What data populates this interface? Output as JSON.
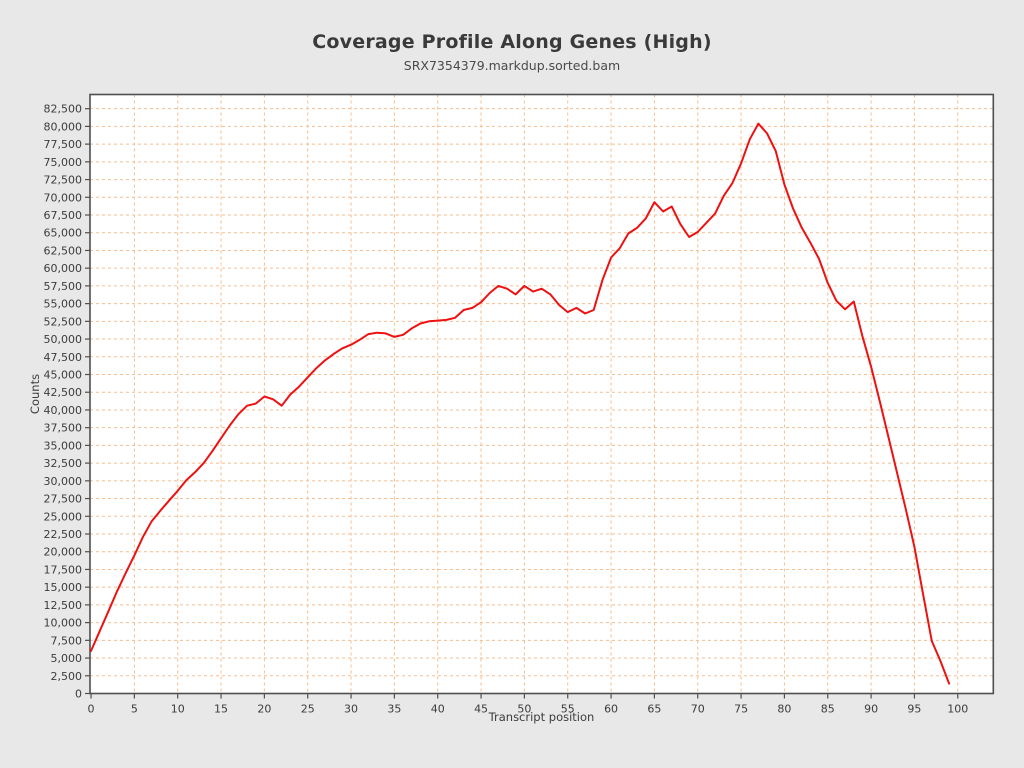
{
  "figure": {
    "title": "Coverage Profile Along Genes (High)",
    "subtitle": "SRX7354379.markdup.sorted.bam"
  },
  "chart_data": {
    "type": "line",
    "title": "Coverage Profile Along Genes (High)",
    "subtitle": "SRX7354379.markdup.sorted.bam",
    "xlabel": "Transcript position",
    "ylabel": "Counts",
    "xlim": [
      -0.12,
      104.1
    ],
    "ylim": [
      0,
      84500
    ],
    "grid": "dashed orange, both axes",
    "legend_position": "none",
    "x_ticks": [
      0,
      5,
      10,
      15,
      20,
      25,
      30,
      35,
      40,
      45,
      50,
      55,
      60,
      65,
      70,
      75,
      80,
      85,
      90,
      95,
      100
    ],
    "y_ticks": [
      0,
      2500,
      5000,
      7500,
      10000,
      12500,
      15000,
      17500,
      20000,
      22500,
      25000,
      27500,
      30000,
      32500,
      35000,
      37500,
      40000,
      42500,
      45000,
      47500,
      50000,
      52500,
      55000,
      57500,
      60000,
      62500,
      65000,
      67500,
      70000,
      72500,
      75000,
      77500,
      80000,
      82500
    ],
    "series": [
      {
        "name": "coverage",
        "color": "#ee1111",
        "x": [
          0,
          1,
          2,
          3,
          4,
          5,
          6,
          7,
          8,
          9,
          10,
          11,
          12,
          13,
          14,
          15,
          16,
          17,
          18,
          19,
          20,
          21,
          22,
          23,
          24,
          25,
          26,
          27,
          28,
          29,
          30,
          31,
          32,
          33,
          34,
          35,
          36,
          37,
          38,
          39,
          40,
          41,
          42,
          43,
          44,
          45,
          46,
          47,
          48,
          49,
          50,
          51,
          52,
          53,
          54,
          55,
          56,
          57,
          58,
          59,
          60,
          61,
          62,
          63,
          64,
          65,
          66,
          67,
          68,
          69,
          70,
          71,
          72,
          73,
          74,
          75,
          76,
          77,
          78,
          79,
          80,
          81,
          82,
          83,
          84,
          85,
          86,
          87,
          88,
          89,
          90,
          91,
          92,
          93,
          94,
          95,
          96,
          97,
          98,
          99
        ],
        "values": [
          6000,
          8800,
          11600,
          14400,
          17000,
          19500,
          22100,
          24300,
          25800,
          27200,
          28600,
          30100,
          31200,
          32500,
          34200,
          36000,
          37800,
          39400,
          40600,
          40900,
          41900,
          41500,
          40600,
          42200,
          43300,
          44600,
          45900,
          47000,
          47900,
          48700,
          49200,
          49900,
          50700,
          50900,
          50800,
          50300,
          50600,
          51500,
          52200,
          52500,
          52600,
          52700,
          53000,
          54100,
          54400,
          55200,
          56500,
          57500,
          57100,
          56300,
          57500,
          56700,
          57100,
          56300,
          54800,
          53800,
          54400,
          53600,
          54100,
          58300,
          61500,
          62800,
          64900,
          65700,
          67000,
          69300,
          68000,
          68700,
          66200,
          64400,
          65100,
          66400,
          67700,
          70200,
          72000,
          74800,
          78200,
          80400,
          79000,
          76500,
          71800,
          68400,
          65700,
          63600,
          61300,
          57900,
          55400,
          54200,
          55300,
          50400,
          46100,
          41200,
          36200,
          31100,
          26000,
          20700,
          14000,
          7400,
          4600,
          1400
        ]
      }
    ]
  },
  "colors": {
    "figure_background": "#e8e8e8",
    "plot_background": "#ffffff",
    "frame": "#4f4f4f",
    "grid": "#f6bd8e",
    "line": "#ee1111",
    "text": "#3c3c3c"
  }
}
